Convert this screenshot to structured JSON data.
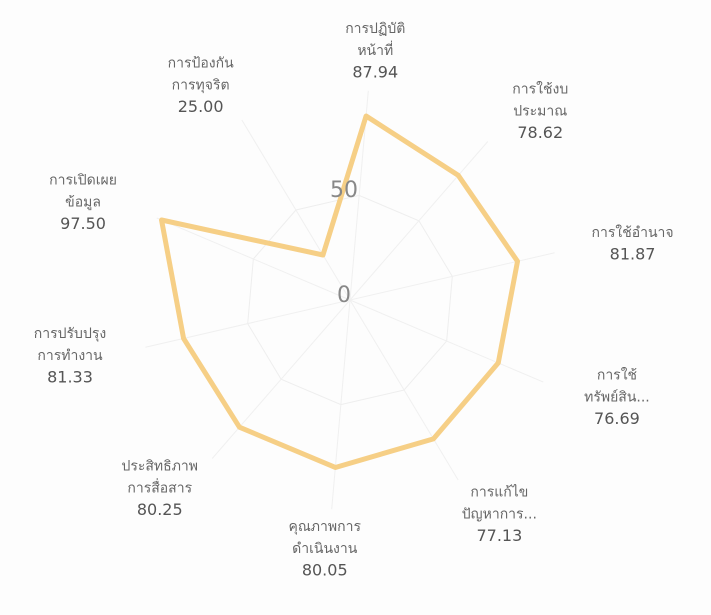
{
  "chart_data": {
    "type": "radar",
    "categories": [
      [
        "การปฏิบัติ",
        "หน้าที่"
      ],
      [
        "การใช้งบ",
        "ประมาณ"
      ],
      [
        "การใช้อำนาจ"
      ],
      [
        "การใช้",
        "ทรัพย์สิน..."
      ],
      [
        "การแก้ไข",
        "ปัญหาการ..."
      ],
      [
        "คุณภาพการ",
        "ดำเนินงาน"
      ],
      [
        "ประสิทธิภาพ",
        "การสื่อสาร"
      ],
      [
        "การปรับปรุง",
        "การทำงาน"
      ],
      [
        "การเปิดเผย",
        "ข้อมูล"
      ],
      [
        "การป้องกัน",
        "การทุจริต"
      ]
    ],
    "values": [
      87.94,
      78.62,
      81.87,
      76.69,
      77.13,
      80.05,
      80.25,
      81.33,
      97.5,
      25
    ],
    "value_labels": [
      "87.94",
      "78.62",
      "81.87",
      "76.69",
      "77.13",
      "80.05",
      "80.25",
      "81.33",
      "97.50",
      "25.00"
    ],
    "color": "#f6cf86",
    "ylim": [
      0,
      100
    ],
    "yticks": [
      0,
      50
    ],
    "grid": true
  }
}
